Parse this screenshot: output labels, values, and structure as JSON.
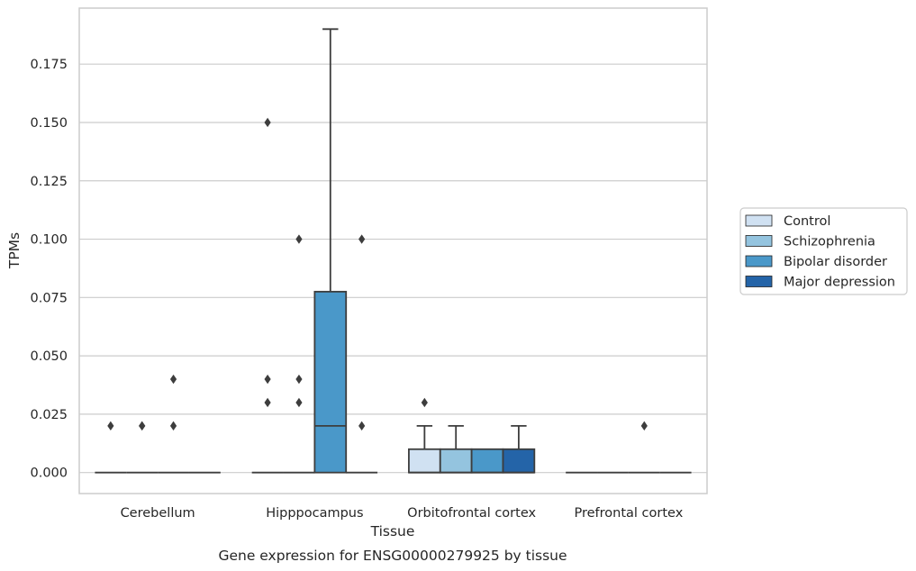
{
  "chart_data": {
    "type": "box",
    "title": "Gene expression for ENSG00000279925 by tissue",
    "xlabel": "Tissue",
    "ylabel": "TPMs",
    "categories": [
      "Cerebellum",
      "Hipppocampus",
      "Orbitofrontal cortex",
      "Prefrontal cortex"
    ],
    "ylim": [
      -0.009,
      0.199
    ],
    "yticks": [
      "0.000",
      "0.025",
      "0.050",
      "0.075",
      "0.100",
      "0.125",
      "0.150",
      "0.175"
    ],
    "grid": true,
    "legend_position": "right",
    "colors": [
      "#d0e1f2",
      "#94c4df",
      "#4a98c9",
      "#2464a8"
    ],
    "series": [
      {
        "name": "Control",
        "boxes": [
          {
            "q1": 0,
            "median": 0,
            "q3": 0,
            "whislo": 0,
            "whishi": 0,
            "fliers": [
              0.02
            ]
          },
          {
            "q1": 0,
            "median": 0,
            "q3": 0,
            "whislo": 0,
            "whishi": 0,
            "fliers": [
              0.15,
              0.04,
              0.03
            ]
          },
          {
            "q1": 0,
            "median": 0,
            "q3": 0.01,
            "whislo": 0,
            "whishi": 0.02,
            "fliers": [
              0.03
            ]
          },
          {
            "q1": 0,
            "median": 0,
            "q3": 0,
            "whislo": 0,
            "whishi": 0,
            "fliers": []
          }
        ]
      },
      {
        "name": "Schizophrenia",
        "boxes": [
          {
            "q1": 0,
            "median": 0,
            "q3": 0,
            "whislo": 0,
            "whishi": 0,
            "fliers": [
              0.02,
              0.02
            ]
          },
          {
            "q1": 0,
            "median": 0,
            "q3": 0,
            "whislo": 0,
            "whishi": 0,
            "fliers": [
              0.1,
              0.04,
              0.03
            ]
          },
          {
            "q1": 0,
            "median": 0,
            "q3": 0.01,
            "whislo": 0,
            "whishi": 0.02,
            "fliers": []
          },
          {
            "q1": 0,
            "median": 0,
            "q3": 0,
            "whislo": 0,
            "whishi": 0,
            "fliers": []
          }
        ]
      },
      {
        "name": "Bipolar disorder",
        "boxes": [
          {
            "q1": 0,
            "median": 0,
            "q3": 0,
            "whislo": 0,
            "whishi": 0,
            "fliers": [
              0.04,
              0.02
            ]
          },
          {
            "q1": 0,
            "median": 0.02,
            "q3": 0.0775,
            "whislo": 0,
            "whishi": 0.19,
            "fliers": []
          },
          {
            "q1": 0,
            "median": 0,
            "q3": 0.01,
            "whislo": 0,
            "whishi": 0.01,
            "fliers": []
          },
          {
            "q1": 0,
            "median": 0,
            "q3": 0,
            "whislo": 0,
            "whishi": 0,
            "fliers": [
              0.02
            ]
          }
        ]
      },
      {
        "name": "Major depression",
        "boxes": [
          {
            "q1": 0,
            "median": 0,
            "q3": 0,
            "whislo": 0,
            "whishi": 0,
            "fliers": []
          },
          {
            "q1": 0,
            "median": 0,
            "q3": 0,
            "whislo": 0,
            "whishi": 0,
            "fliers": [
              0.1,
              0.02
            ]
          },
          {
            "q1": 0,
            "median": 0,
            "q3": 0.01,
            "whislo": 0,
            "whishi": 0.02,
            "fliers": []
          },
          {
            "q1": 0,
            "median": 0,
            "q3": 0,
            "whislo": 0,
            "whishi": 0,
            "fliers": []
          }
        ]
      }
    ]
  }
}
